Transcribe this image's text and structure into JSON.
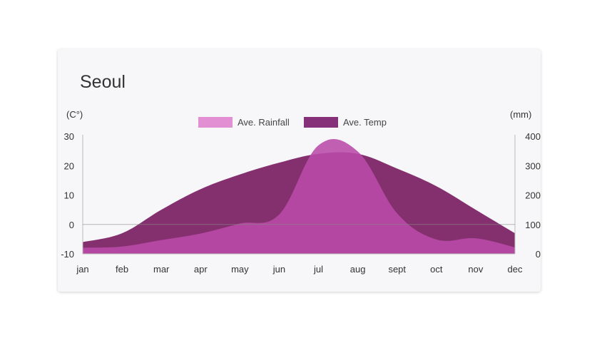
{
  "title": "Seoul",
  "colors": {
    "rainfall": "#b94aa8",
    "temp": "#84306f",
    "rainfall_legend": "#e28fd4",
    "temp_legend": "#86307a"
  },
  "legend": [
    {
      "label": "Ave. Rainfall",
      "color": "#e28fd4"
    },
    {
      "label": "Ave. Temp",
      "color": "#86307a"
    }
  ],
  "chart_data": {
    "type": "area",
    "title": "Seoul",
    "categories": [
      "jan",
      "feb",
      "mar",
      "apr",
      "may",
      "jun",
      "jul",
      "aug",
      "sept",
      "oct",
      "nov",
      "dec"
    ],
    "y_left": {
      "label": "(C°)",
      "ticks": [
        "30",
        "20",
        "10",
        "0",
        "-10"
      ],
      "range": [
        -10,
        30
      ]
    },
    "y_right": {
      "label": "(mm)",
      "ticks": [
        "400",
        "300",
        "200",
        "100",
        "0"
      ],
      "range": [
        0,
        400
      ]
    },
    "series": [
      {
        "name": "Ave. Rainfall",
        "axis": "right",
        "values": [
          21,
          25,
          47,
          69,
          103,
          134,
          369,
          348,
          138,
          49,
          53,
          22
        ]
      },
      {
        "name": "Ave. Temp",
        "axis": "left",
        "values": [
          -6,
          -3,
          5,
          12,
          17,
          21,
          24,
          24,
          19,
          13,
          5,
          -3
        ]
      }
    ],
    "grid": false,
    "legend_position": "top-center"
  }
}
